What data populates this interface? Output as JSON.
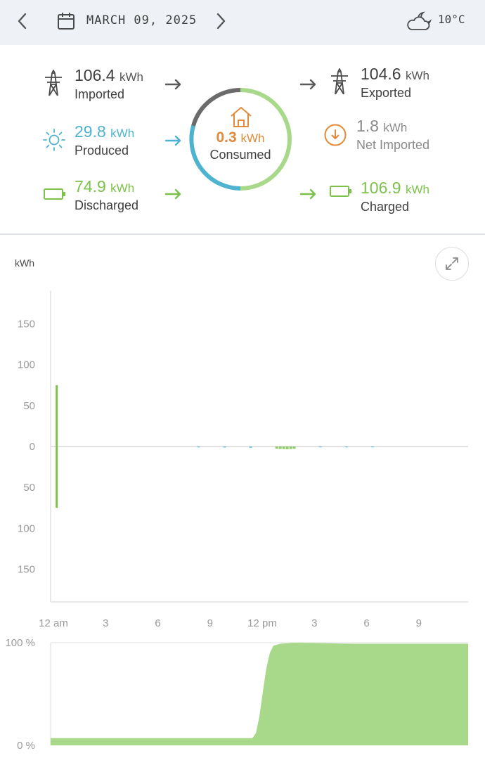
{
  "header": {
    "prev_icon": "chevron-left-icon",
    "next_icon": "chevron-right-icon",
    "calendar_icon": "calendar-icon",
    "date": "MARCH 09, 2025",
    "weather_icon": "cloud-moon-icon",
    "temperature": "10°C"
  },
  "summary": {
    "imported": {
      "value": "106.4",
      "unit": "kWh",
      "label": "Imported",
      "icon": "power-tower-icon"
    },
    "produced": {
      "value": "29.8",
      "unit": "kWh",
      "label": "Produced",
      "icon": "sun-icon"
    },
    "discharged": {
      "value": "74.9",
      "unit": "kWh",
      "label": "Discharged",
      "icon": "battery-icon"
    },
    "consumed": {
      "value": "0.3",
      "unit": "kWh",
      "label": "Consumed",
      "icon": "home-icon"
    },
    "exported": {
      "value": "104.6",
      "unit": "kWh",
      "label": "Exported",
      "icon": "power-tower-icon"
    },
    "net_imported": {
      "value": "1.8",
      "unit": "kWh",
      "label": "Net Imported",
      "icon": "download-circle-icon"
    },
    "charged": {
      "value": "106.9",
      "unit": "kWh",
      "label": "Charged",
      "icon": "battery-icon"
    }
  },
  "colors": {
    "grid": "#5a5a5a",
    "solar": "#4eb3cf",
    "battery": "#7cc24a",
    "home": "#e08a3a",
    "header_bg": "#eef2f7"
  },
  "chart_data": [
    {
      "type": "bar",
      "ylabel": "kWh",
      "ylim": [
        -190,
        190
      ],
      "y_ticks": [
        "150",
        "100",
        "50",
        "0",
        "50",
        "100",
        "150"
      ],
      "y_tick_values": [
        150,
        100,
        50,
        0,
        -50,
        -100,
        -150
      ],
      "x_ticks": [
        "12 am",
        "3",
        "6",
        "9",
        "12 pm",
        "3",
        "6",
        "9"
      ],
      "x_tick_hours": [
        0,
        3,
        6,
        9,
        12,
        15,
        18,
        21
      ],
      "x_range_hours": [
        0,
        24
      ],
      "grid": false,
      "series": [
        {
          "values": [
            [
              0.35,
              75
            ],
            [
              0.35,
              -75
            ]
          ],
          "color": "#7cc24a"
        },
        {
          "values": [
            [
              13.0,
              -2.6
            ],
            [
              13.2,
              -2.8
            ],
            [
              13.4,
              -3.0
            ],
            [
              13.6,
              -3.2
            ],
            [
              13.8,
              -3.0
            ],
            [
              14.0,
              -2.7
            ]
          ],
          "color": "#7cc24a"
        },
        {
          "values": [
            [
              8.5,
              -0.8
            ],
            [
              10.0,
              -1.2
            ],
            [
              11.5,
              -1.5
            ],
            [
              15.5,
              -1.0
            ],
            [
              17.0,
              -0.6
            ],
            [
              18.5,
              -0.3
            ]
          ],
          "color": "#4eb3cf"
        }
      ]
    },
    {
      "type": "area",
      "y_ticks": [
        "100 %",
        "0 %"
      ],
      "ylim": [
        0,
        100
      ],
      "x_range_hours": [
        0,
        24
      ],
      "color": "#a8d98a",
      "x": [
        0,
        11.6,
        11.8,
        12.0,
        12.2,
        12.4,
        12.6,
        12.8,
        13.0,
        13.2,
        14.0,
        17.5,
        24
      ],
      "y": [
        7,
        7,
        12,
        28,
        52,
        75,
        90,
        97,
        98,
        99,
        100,
        99,
        99
      ]
    }
  ]
}
